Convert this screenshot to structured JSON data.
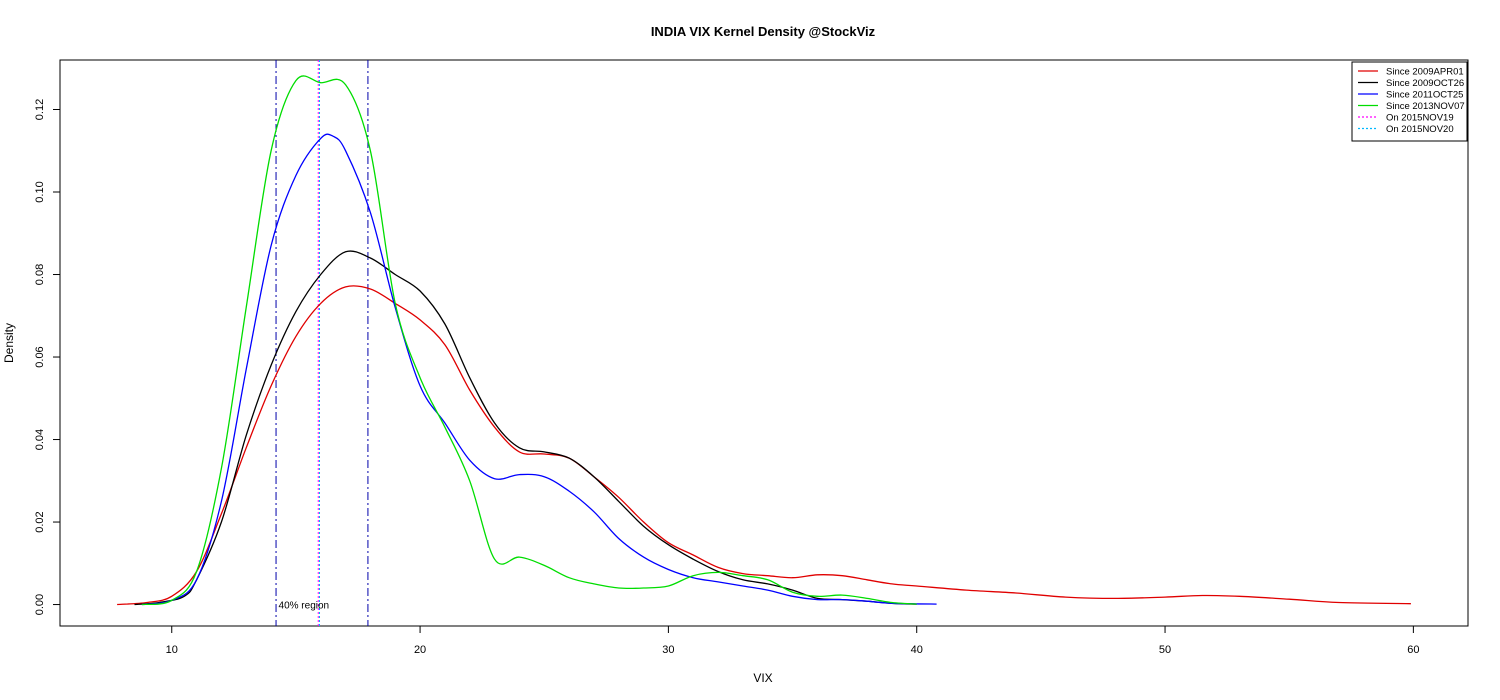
{
  "chart_data": {
    "type": "line",
    "title": "INDIA VIX Kernel Density @StockViz",
    "xlabel": "VIX",
    "ylabel": "Density",
    "xlim": [
      5.5,
      62.2
    ],
    "ylim": [
      -0.0052,
      0.132
    ],
    "x_ticks": [
      10,
      20,
      30,
      40,
      50,
      60
    ],
    "y_ticks": [
      0.0,
      0.02,
      0.04,
      0.06,
      0.08,
      0.1,
      0.12
    ],
    "grid": false,
    "legend_position": "top-right",
    "series": [
      {
        "name": "Since 2009APR01",
        "color": "#e00000",
        "style": "solid",
        "points": [
          [
            7.8,
            0.0
          ],
          [
            9,
            0.0005
          ],
          [
            10,
            0.002
          ],
          [
            11,
            0.008
          ],
          [
            12,
            0.022
          ],
          [
            13,
            0.038
          ],
          [
            14,
            0.053
          ],
          [
            15,
            0.065
          ],
          [
            16,
            0.073
          ],
          [
            17,
            0.077
          ],
          [
            18,
            0.0765
          ],
          [
            19,
            0.073
          ],
          [
            20,
            0.069
          ],
          [
            21,
            0.063
          ],
          [
            22,
            0.052
          ],
          [
            23,
            0.043
          ],
          [
            24,
            0.037
          ],
          [
            25,
            0.0365
          ],
          [
            26,
            0.0355
          ],
          [
            27,
            0.031
          ],
          [
            28,
            0.026
          ],
          [
            29,
            0.02
          ],
          [
            30,
            0.015
          ],
          [
            31,
            0.012
          ],
          [
            32,
            0.009
          ],
          [
            33,
            0.0075
          ],
          [
            34,
            0.007
          ],
          [
            35,
            0.0065
          ],
          [
            36,
            0.0072
          ],
          [
            37,
            0.007
          ],
          [
            38,
            0.006
          ],
          [
            39,
            0.005
          ],
          [
            40,
            0.0045
          ],
          [
            42,
            0.0035
          ],
          [
            44,
            0.0028
          ],
          [
            46,
            0.0018
          ],
          [
            48,
            0.0015
          ],
          [
            50,
            0.0018
          ],
          [
            51.5,
            0.0022
          ],
          [
            53,
            0.002
          ],
          [
            55,
            0.0013
          ],
          [
            57,
            0.0005
          ],
          [
            59.9,
            0.0002
          ]
        ]
      },
      {
        "name": "Since 2009OCT26",
        "color": "#000000",
        "style": "solid",
        "points": [
          [
            8.5,
            0.0
          ],
          [
            9.5,
            0.0005
          ],
          [
            10.5,
            0.002
          ],
          [
            11,
            0.006
          ],
          [
            12,
            0.02
          ],
          [
            13,
            0.041
          ],
          [
            14,
            0.058
          ],
          [
            15,
            0.071
          ],
          [
            16,
            0.08
          ],
          [
            17,
            0.0855
          ],
          [
            18,
            0.084
          ],
          [
            19,
            0.08
          ],
          [
            20,
            0.076
          ],
          [
            21,
            0.068
          ],
          [
            22,
            0.055
          ],
          [
            23,
            0.044
          ],
          [
            24,
            0.038
          ],
          [
            25,
            0.037
          ],
          [
            26,
            0.0355
          ],
          [
            27,
            0.031
          ],
          [
            28,
            0.025
          ],
          [
            29,
            0.019
          ],
          [
            30,
            0.0145
          ],
          [
            31,
            0.011
          ],
          [
            32,
            0.008
          ],
          [
            33,
            0.006
          ],
          [
            34,
            0.005
          ],
          [
            35,
            0.0035
          ],
          [
            36,
            0.0015
          ],
          [
            37,
            0.0012
          ],
          [
            38,
            0.0008
          ],
          [
            39,
            0.0003
          ],
          [
            40,
            0.0001
          ]
        ]
      },
      {
        "name": "Since 2011OCT25",
        "color": "#0000ff",
        "style": "solid",
        "points": [
          [
            8.8,
            0.0
          ],
          [
            10,
            0.001
          ],
          [
            11,
            0.006
          ],
          [
            12,
            0.025
          ],
          [
            13,
            0.057
          ],
          [
            14,
            0.087
          ],
          [
            15,
            0.104
          ],
          [
            16,
            0.113
          ],
          [
            16.5,
            0.1135
          ],
          [
            17,
            0.11
          ],
          [
            18,
            0.095
          ],
          [
            19,
            0.072
          ],
          [
            20,
            0.053
          ],
          [
            21,
            0.044
          ],
          [
            22,
            0.035
          ],
          [
            23,
            0.0305
          ],
          [
            24,
            0.0315
          ],
          [
            25,
            0.031
          ],
          [
            26,
            0.0275
          ],
          [
            27,
            0.0225
          ],
          [
            28,
            0.016
          ],
          [
            29,
            0.0115
          ],
          [
            30,
            0.0085
          ],
          [
            31,
            0.0065
          ],
          [
            32,
            0.0055
          ],
          [
            33,
            0.0045
          ],
          [
            34,
            0.0035
          ],
          [
            35,
            0.002
          ],
          [
            36,
            0.0012
          ],
          [
            37,
            0.0012
          ],
          [
            38,
            0.0008
          ],
          [
            39,
            0.0003
          ],
          [
            40.8,
            0.0001
          ]
        ]
      },
      {
        "name": "Since 2013NOV07",
        "color": "#00dd00",
        "style": "solid",
        "points": [
          [
            8.8,
            0.0
          ],
          [
            10,
            0.001
          ],
          [
            11,
            0.008
          ],
          [
            12,
            0.033
          ],
          [
            13,
            0.072
          ],
          [
            14,
            0.11
          ],
          [
            15,
            0.127
          ],
          [
            16,
            0.1265
          ],
          [
            17,
            0.126
          ],
          [
            18,
            0.11
          ],
          [
            19,
            0.073
          ],
          [
            20,
            0.055
          ],
          [
            21,
            0.043
          ],
          [
            22,
            0.03
          ],
          [
            23,
            0.011
          ],
          [
            24,
            0.0115
          ],
          [
            25,
            0.0095
          ],
          [
            26,
            0.0065
          ],
          [
            27,
            0.005
          ],
          [
            28,
            0.004
          ],
          [
            29,
            0.004
          ],
          [
            30,
            0.0045
          ],
          [
            31,
            0.007
          ],
          [
            32,
            0.0078
          ],
          [
            33,
            0.007
          ],
          [
            34,
            0.006
          ],
          [
            35,
            0.003
          ],
          [
            36,
            0.002
          ],
          [
            37,
            0.0023
          ],
          [
            38,
            0.0015
          ],
          [
            39,
            0.0005
          ],
          [
            40,
            0.0001
          ]
        ]
      },
      {
        "name": "On 2015NOV19",
        "color": "#ff00ff",
        "style": "dotted",
        "vline_x": 15.9
      },
      {
        "name": "On 2015NOV20",
        "color": "#00b8ff",
        "style": "dotted",
        "vline_x": 15.95
      }
    ],
    "region_lines": [
      {
        "x": 14.2,
        "color": "#0000aa",
        "style": "dashdot"
      },
      {
        "x": 17.9,
        "color": "#0000aa",
        "style": "dashdot"
      }
    ],
    "annotations": [
      {
        "text": "40% region",
        "x": 14.3,
        "y": 0.0
      }
    ]
  }
}
